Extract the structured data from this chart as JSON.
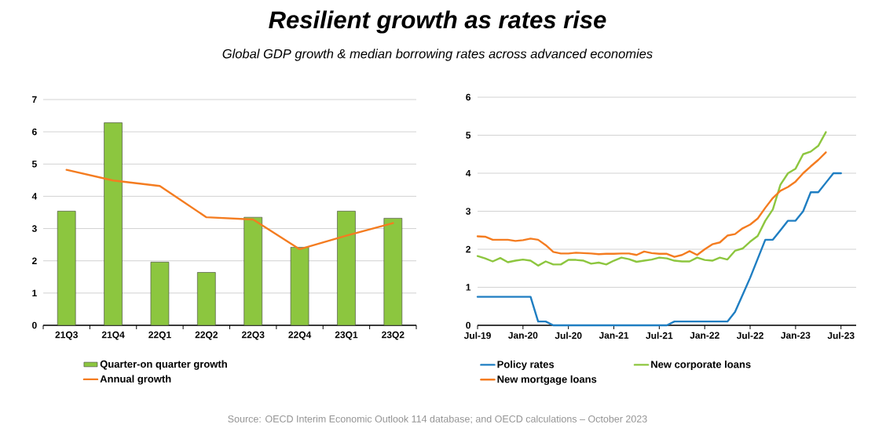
{
  "chart_data": [
    {
      "type": "bar",
      "title": "Resilient growth as rates rise",
      "subtitle": "Global GDP growth & median borrowing rates across advanced economies",
      "annotations": [
        "Source: OECD Interim Economic Outlook 114 database; and OECD calculations – October 2023"
      ],
      "categories": [
        "21Q3",
        "21Q4",
        "22Q1",
        "22Q2",
        "22Q3",
        "22Q4",
        "23Q1",
        "23Q2"
      ],
      "series": [
        {
          "name": "Quarter-on quarter growth",
          "color": "#8cc63f",
          "values": [
            3.54,
            6.28,
            1.96,
            1.64,
            3.35,
            2.42,
            3.54,
            3.32
          ]
        },
        {
          "name": "Annual growth",
          "type": "line",
          "color": "#f47c20",
          "values": [
            4.82,
            4.49,
            4.32,
            3.35,
            3.28,
            2.36,
            2.78,
            3.17
          ]
        }
      ],
      "ylim": [
        0,
        7
      ],
      "yticks": [
        0,
        1,
        2,
        3,
        4,
        5,
        6,
        7
      ],
      "grid": "y",
      "legend": "bottom"
    },
    {
      "type": "line",
      "x": [
        "2019-07",
        "2019-08",
        "2019-09",
        "2019-10",
        "2019-11",
        "2019-12",
        "2020-01",
        "2020-02",
        "2020-03",
        "2020-04",
        "2020-05",
        "2020-06",
        "2020-07",
        "2020-08",
        "2020-09",
        "2020-10",
        "2020-11",
        "2020-12",
        "2021-01",
        "2021-02",
        "2021-03",
        "2021-04",
        "2021-05",
        "2021-06",
        "2021-07",
        "2021-08",
        "2021-09",
        "2021-10",
        "2021-11",
        "2021-12",
        "2022-01",
        "2022-02",
        "2022-03",
        "2022-04",
        "2022-05",
        "2022-06",
        "2022-07",
        "2022-08",
        "2022-09",
        "2022-10",
        "2022-11",
        "2022-12",
        "2023-01",
        "2023-02",
        "2023-03",
        "2023-04",
        "2023-05",
        "2023-06",
        "2023-07"
      ],
      "series": [
        {
          "name": "Policy rates",
          "color": "#1f7ec2",
          "values": [
            0.75,
            0.75,
            0.75,
            0.75,
            0.75,
            0.75,
            0.75,
            0.75,
            0.1,
            0.1,
            0,
            0,
            0,
            0,
            0,
            0,
            0,
            0,
            0,
            0,
            0,
            0,
            0,
            0,
            0,
            0,
            0.1,
            0.1,
            0.1,
            0.1,
            0.1,
            0.1,
            0.1,
            0.1,
            0.35,
            0.8,
            1.25,
            1.75,
            2.25,
            2.25,
            2.5,
            2.75,
            2.75,
            3.0,
            3.5,
            3.5,
            3.75,
            4.0,
            4.0
          ]
        },
        {
          "name": "New corporate loans",
          "color": "#8dc63f",
          "values": [
            1.82,
            1.76,
            1.68,
            1.77,
            1.66,
            1.7,
            1.73,
            1.7,
            1.57,
            1.68,
            1.6,
            1.6,
            1.72,
            1.72,
            1.7,
            1.62,
            1.65,
            1.6,
            1.7,
            1.78,
            1.74,
            1.67,
            1.7,
            1.73,
            1.78,
            1.76,
            1.7,
            1.68,
            1.68,
            1.78,
            1.72,
            1.7,
            1.78,
            1.73,
            1.96,
            2.02,
            2.2,
            2.35,
            2.75,
            3.05,
            3.7,
            4.0,
            4.12,
            4.5,
            4.57,
            4.72,
            5.08,
            null,
            null
          ]
        },
        {
          "name": "New mortgage loans",
          "color": "#f47c20",
          "values": [
            2.34,
            2.33,
            2.25,
            2.25,
            2.25,
            2.22,
            2.24,
            2.28,
            2.25,
            2.11,
            1.93,
            1.89,
            1.89,
            1.91,
            1.9,
            1.89,
            1.87,
            1.88,
            1.88,
            1.89,
            1.89,
            1.85,
            1.94,
            1.9,
            1.88,
            1.88,
            1.8,
            1.85,
            1.95,
            1.85,
            2.0,
            2.13,
            2.18,
            2.36,
            2.4,
            2.55,
            2.65,
            2.81,
            3.09,
            3.35,
            3.54,
            3.64,
            3.78,
            4.0,
            4.18,
            4.35,
            4.55,
            null,
            null
          ]
        }
      ],
      "xlim": [
        "2019-07",
        "2023-09"
      ],
      "xticks": [
        {
          "value": "2019-07",
          "label": "Jul-19"
        },
        {
          "value": "2020-01",
          "label": "Jan-20"
        },
        {
          "value": "2020-07",
          "label": "Jul-20"
        },
        {
          "value": "2021-01",
          "label": "Jan-21"
        },
        {
          "value": "2021-07",
          "label": "Jul-21"
        },
        {
          "value": "2022-01",
          "label": "Jan-22"
        },
        {
          "value": "2022-07",
          "label": "Jul-22"
        },
        {
          "value": "2023-01",
          "label": "Jan-23"
        },
        {
          "value": "2023-07",
          "label": "Jul-23"
        }
      ],
      "ylim": [
        0,
        6
      ],
      "yticks": [
        0,
        1,
        2,
        3,
        4,
        5,
        6
      ],
      "grid": "y",
      "legend": "bottom"
    }
  ]
}
